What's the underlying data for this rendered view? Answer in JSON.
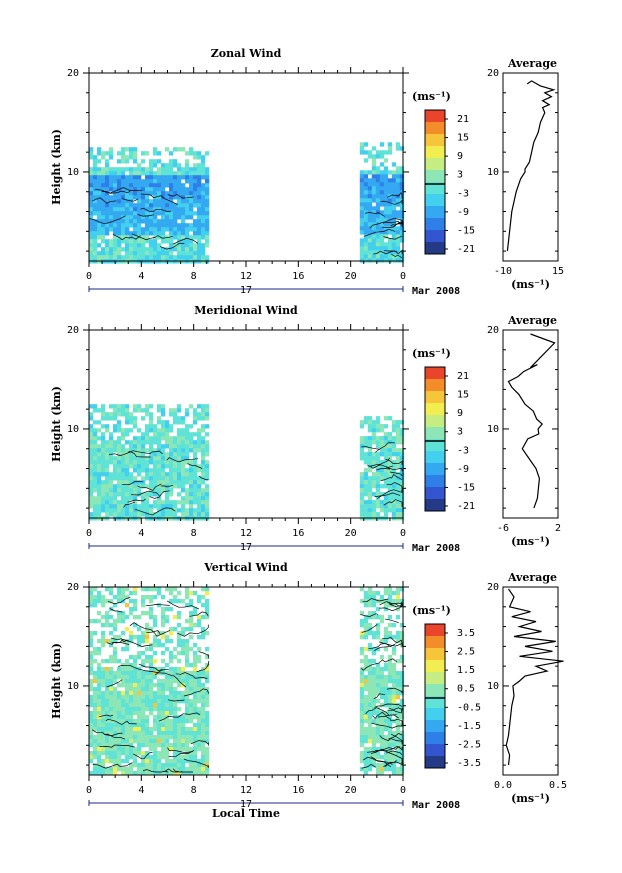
{
  "chart_data": [
    {
      "type": "heatmap",
      "title": "Zonal Wind",
      "ylabel": "Height (km)",
      "ytick_labels": [
        "20",
        "10"
      ],
      "xtick_labels": [
        "0",
        "4",
        "8",
        "12",
        "16",
        "20",
        "0"
      ],
      "day_label": "17",
      "date_label": "Mar 2008",
      "unit_label": "(ms⁻¹)",
      "colorbar_ticks": [
        "21",
        "15",
        "9",
        "3",
        "-3",
        "-9",
        "-15",
        "-21"
      ],
      "colorbar_range": [
        -24,
        24
      ],
      "xlim": [
        0,
        24
      ],
      "ylim": [
        1,
        20
      ],
      "coverage": [
        {
          "x0": 0,
          "x1": 9.2,
          "top_km": 12.5
        },
        {
          "x0": 20.7,
          "x1": 24,
          "top_km": 13
        }
      ],
      "profile": {
        "title": "Average",
        "xlabel": "(ms⁻¹)",
        "xtick_labels": [
          "-10",
          "15"
        ],
        "xlim": [
          -10,
          15
        ],
        "ytick_labels": [
          "20",
          "10"
        ],
        "points": [
          [
            -8,
            2
          ],
          [
            -7,
            4
          ],
          [
            -6,
            6
          ],
          [
            -4,
            8
          ],
          [
            -2,
            9.3
          ],
          [
            0,
            10
          ],
          [
            0,
            10.3
          ],
          [
            2,
            11
          ],
          [
            3,
            12
          ],
          [
            4,
            13
          ],
          [
            6,
            14
          ],
          [
            7,
            15
          ],
          [
            9,
            16
          ],
          [
            8,
            16.5
          ],
          [
            11,
            16.8
          ],
          [
            8,
            17.2
          ],
          [
            12,
            17.6
          ],
          [
            9,
            18
          ],
          [
            13,
            18.3
          ],
          [
            7,
            18.7
          ],
          [
            3,
            19.2
          ],
          [
            1,
            18.9
          ]
        ]
      }
    },
    {
      "type": "heatmap",
      "title": "Meridional Wind",
      "ylabel": "Height (km)",
      "ytick_labels": [
        "20",
        "10"
      ],
      "xtick_labels": [
        "0",
        "4",
        "8",
        "12",
        "16",
        "20",
        "0"
      ],
      "day_label": "17",
      "date_label": "Mar 2008",
      "unit_label": "(ms⁻¹)",
      "colorbar_ticks": [
        "21",
        "15",
        "9",
        "3",
        "-3",
        "-9",
        "-15",
        "-21"
      ],
      "colorbar_range": [
        -24,
        24
      ],
      "xlim": [
        0,
        24
      ],
      "ylim": [
        1,
        20
      ],
      "coverage": [
        {
          "x0": 0,
          "x1": 9.2,
          "top_km": 12.5
        },
        {
          "x0": 20.7,
          "x1": 24,
          "top_km": 11.3
        }
      ],
      "profile": {
        "title": "Average",
        "xlabel": "(ms⁻¹)",
        "xtick_labels": [
          "-6",
          "2"
        ],
        "xlim": [
          -6,
          2
        ],
        "ytick_labels": [
          "20",
          "10"
        ],
        "points": [
          [
            -1.5,
            2
          ],
          [
            -1,
            3
          ],
          [
            -0.7,
            5
          ],
          [
            -1.2,
            6
          ],
          [
            -2.2,
            7
          ],
          [
            -3.2,
            8
          ],
          [
            -2.4,
            9
          ],
          [
            -0.8,
            9.5
          ],
          [
            -0.9,
            10
          ],
          [
            -0.3,
            10.5
          ],
          [
            -1.1,
            11
          ],
          [
            -1.6,
            11.8
          ],
          [
            -2.8,
            12.5
          ],
          [
            -3.7,
            13.5
          ],
          [
            -4.7,
            14.2
          ],
          [
            -5.2,
            14.8
          ],
          [
            -3.8,
            15.3
          ],
          [
            -3,
            15.8
          ],
          [
            -1,
            16.5
          ],
          [
            -2,
            16.2
          ],
          [
            1.5,
            18.7
          ],
          [
            -2,
            19.6
          ]
        ]
      }
    },
    {
      "type": "heatmap",
      "title": "Vertical Wind",
      "ylabel": "Height (km)",
      "xlabel": "Local Time",
      "ytick_labels": [
        "20",
        "10"
      ],
      "xtick_labels": [
        "0",
        "4",
        "8",
        "12",
        "16",
        "20",
        "0"
      ],
      "day_label": "17",
      "date_label": "Mar 2008",
      "unit_label": "(ms⁻¹)",
      "colorbar_ticks": [
        "3.5",
        "2.5",
        "1.5",
        "0.5",
        "-0.5",
        "-1.5",
        "-2.5",
        "-3.5"
      ],
      "colorbar_range": [
        -4,
        4
      ],
      "xlim": [
        0,
        24
      ],
      "ylim": [
        1,
        20
      ],
      "coverage": [
        {
          "x0": 0,
          "x1": 9.2,
          "top_km": 20
        },
        {
          "x0": 20.7,
          "x1": 24,
          "top_km": 20
        }
      ],
      "profile": {
        "title": "Average",
        "xlabel": "(ms⁻¹)",
        "xtick_labels": [
          "0.0",
          "0.5"
        ],
        "xlim": [
          0,
          0.5
        ],
        "ytick_labels": [
          "20",
          "10"
        ],
        "points": [
          [
            0.05,
            2
          ],
          [
            0.06,
            3
          ],
          [
            0.03,
            4
          ],
          [
            0.05,
            5
          ],
          [
            0.06,
            6
          ],
          [
            0.07,
            7
          ],
          [
            0.08,
            8
          ],
          [
            0.1,
            9
          ],
          [
            0.09,
            10
          ],
          [
            0.15,
            10.5
          ],
          [
            0.2,
            11
          ],
          [
            0.4,
            11.5
          ],
          [
            0.3,
            12
          ],
          [
            0.55,
            12.5
          ],
          [
            0.15,
            13
          ],
          [
            0.45,
            13.5
          ],
          [
            0.2,
            14
          ],
          [
            0.48,
            14.5
          ],
          [
            0.1,
            15
          ],
          [
            0.35,
            15.5
          ],
          [
            0.15,
            16
          ],
          [
            0.3,
            16.5
          ],
          [
            0.08,
            17
          ],
          [
            0.25,
            17.5
          ],
          [
            0.06,
            18
          ],
          [
            0.1,
            19
          ],
          [
            0.05,
            19.8
          ]
        ]
      }
    }
  ]
}
